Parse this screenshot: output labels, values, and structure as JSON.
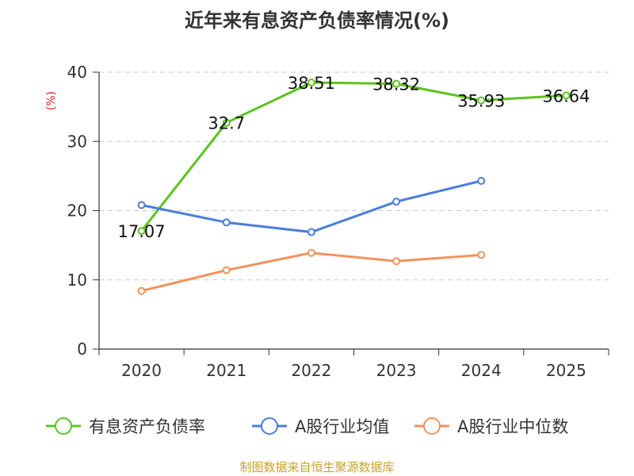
{
  "chart_data": {
    "type": "line",
    "title": "近年来有息资产负债率情况(%)",
    "ylabel": "(%)",
    "xlabel": "",
    "ylim": [
      0,
      40
    ],
    "yticks": [
      0,
      10,
      20,
      30,
      40
    ],
    "categories": [
      "2020",
      "2021",
      "2022",
      "2023",
      "2024",
      "2025"
    ],
    "series": [
      {
        "name": "有息资产负债率",
        "color": "#5cc41f",
        "labeled": true,
        "values": [
          17.07,
          32.7,
          38.51,
          38.32,
          35.93,
          36.64
        ],
        "labels": [
          "17.07",
          "32.7",
          "38.51",
          "38.32",
          "35.93",
          "36.64"
        ]
      },
      {
        "name": "A股行业均值",
        "color": "#4b7fd8",
        "labeled": false,
        "values": [
          20.8,
          18.3,
          16.9,
          21.3,
          24.3,
          null
        ]
      },
      {
        "name": "A股行业中位数",
        "color": "#f5915c",
        "labeled": false,
        "values": [
          8.4,
          11.4,
          13.9,
          12.7,
          13.6,
          null
        ]
      }
    ],
    "legend_position": "bottom",
    "grid": true
  },
  "footer": {
    "source": "制图数据来自恒生聚源数据库"
  }
}
